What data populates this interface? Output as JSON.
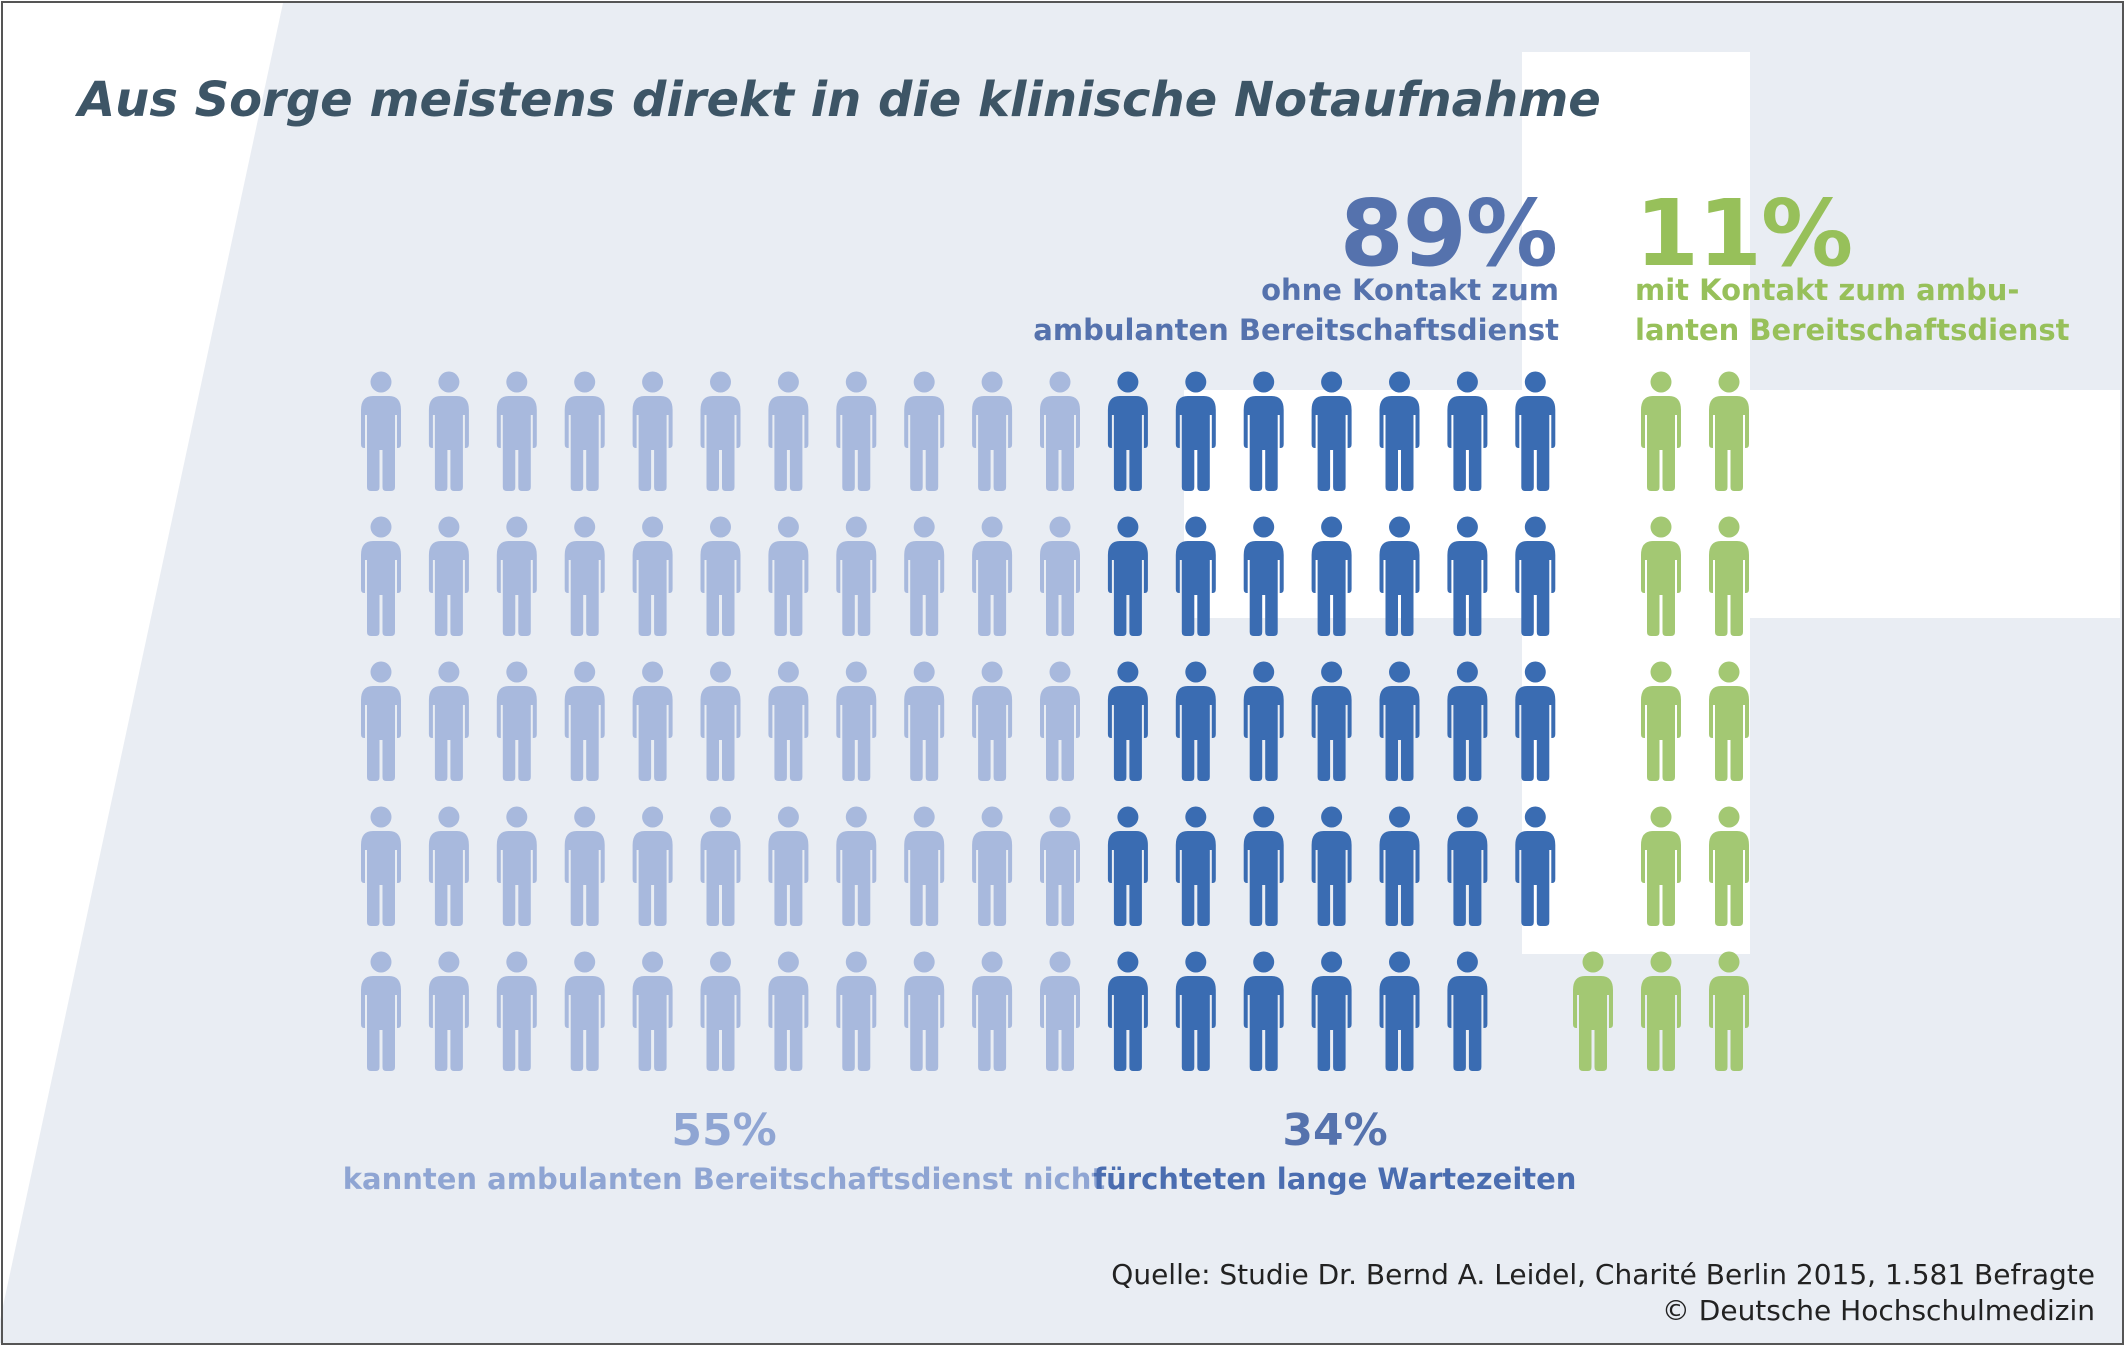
{
  "title": "Aus Sorge meistens direkt in die klinische Notaufnahme",
  "chart_data": {
    "type": "pictogram",
    "total_icons": 100,
    "groups": [
      {
        "key": "light",
        "percent": "55%",
        "count": 55,
        "label": "kannten ambulanten Bereitschaftsdienst nicht",
        "color": "#a8b9dd"
      },
      {
        "key": "dark",
        "percent": "34%",
        "count": 34,
        "label": "fürchteten lange Wartezeiten",
        "color": "#3a6cb2"
      },
      {
        "key": "green",
        "percent": "11%",
        "count": 11,
        "label": "",
        "color": "#a3c873"
      }
    ],
    "top_annotations": [
      {
        "percent": "89%",
        "lines": [
          "ohne Kontakt zum",
          "ambulanten Bereitschaftsdienst"
        ],
        "color": "#5572ad"
      },
      {
        "percent": "11%",
        "lines": [
          "mit Kontakt zum ambu-",
          "lanten Bereitschaftsdienst"
        ],
        "color": "#97c05a"
      }
    ]
  },
  "source": {
    "line1": "Quelle: Studie Dr. Bernd A. Leidel, Charité Berlin 2015, 1.581 Befragte",
    "line2": "© Deutsche Hochschulmedizin"
  },
  "colors": {
    "background_tint": "#e9edf3",
    "border": "#555555",
    "title": "#3d5566"
  }
}
